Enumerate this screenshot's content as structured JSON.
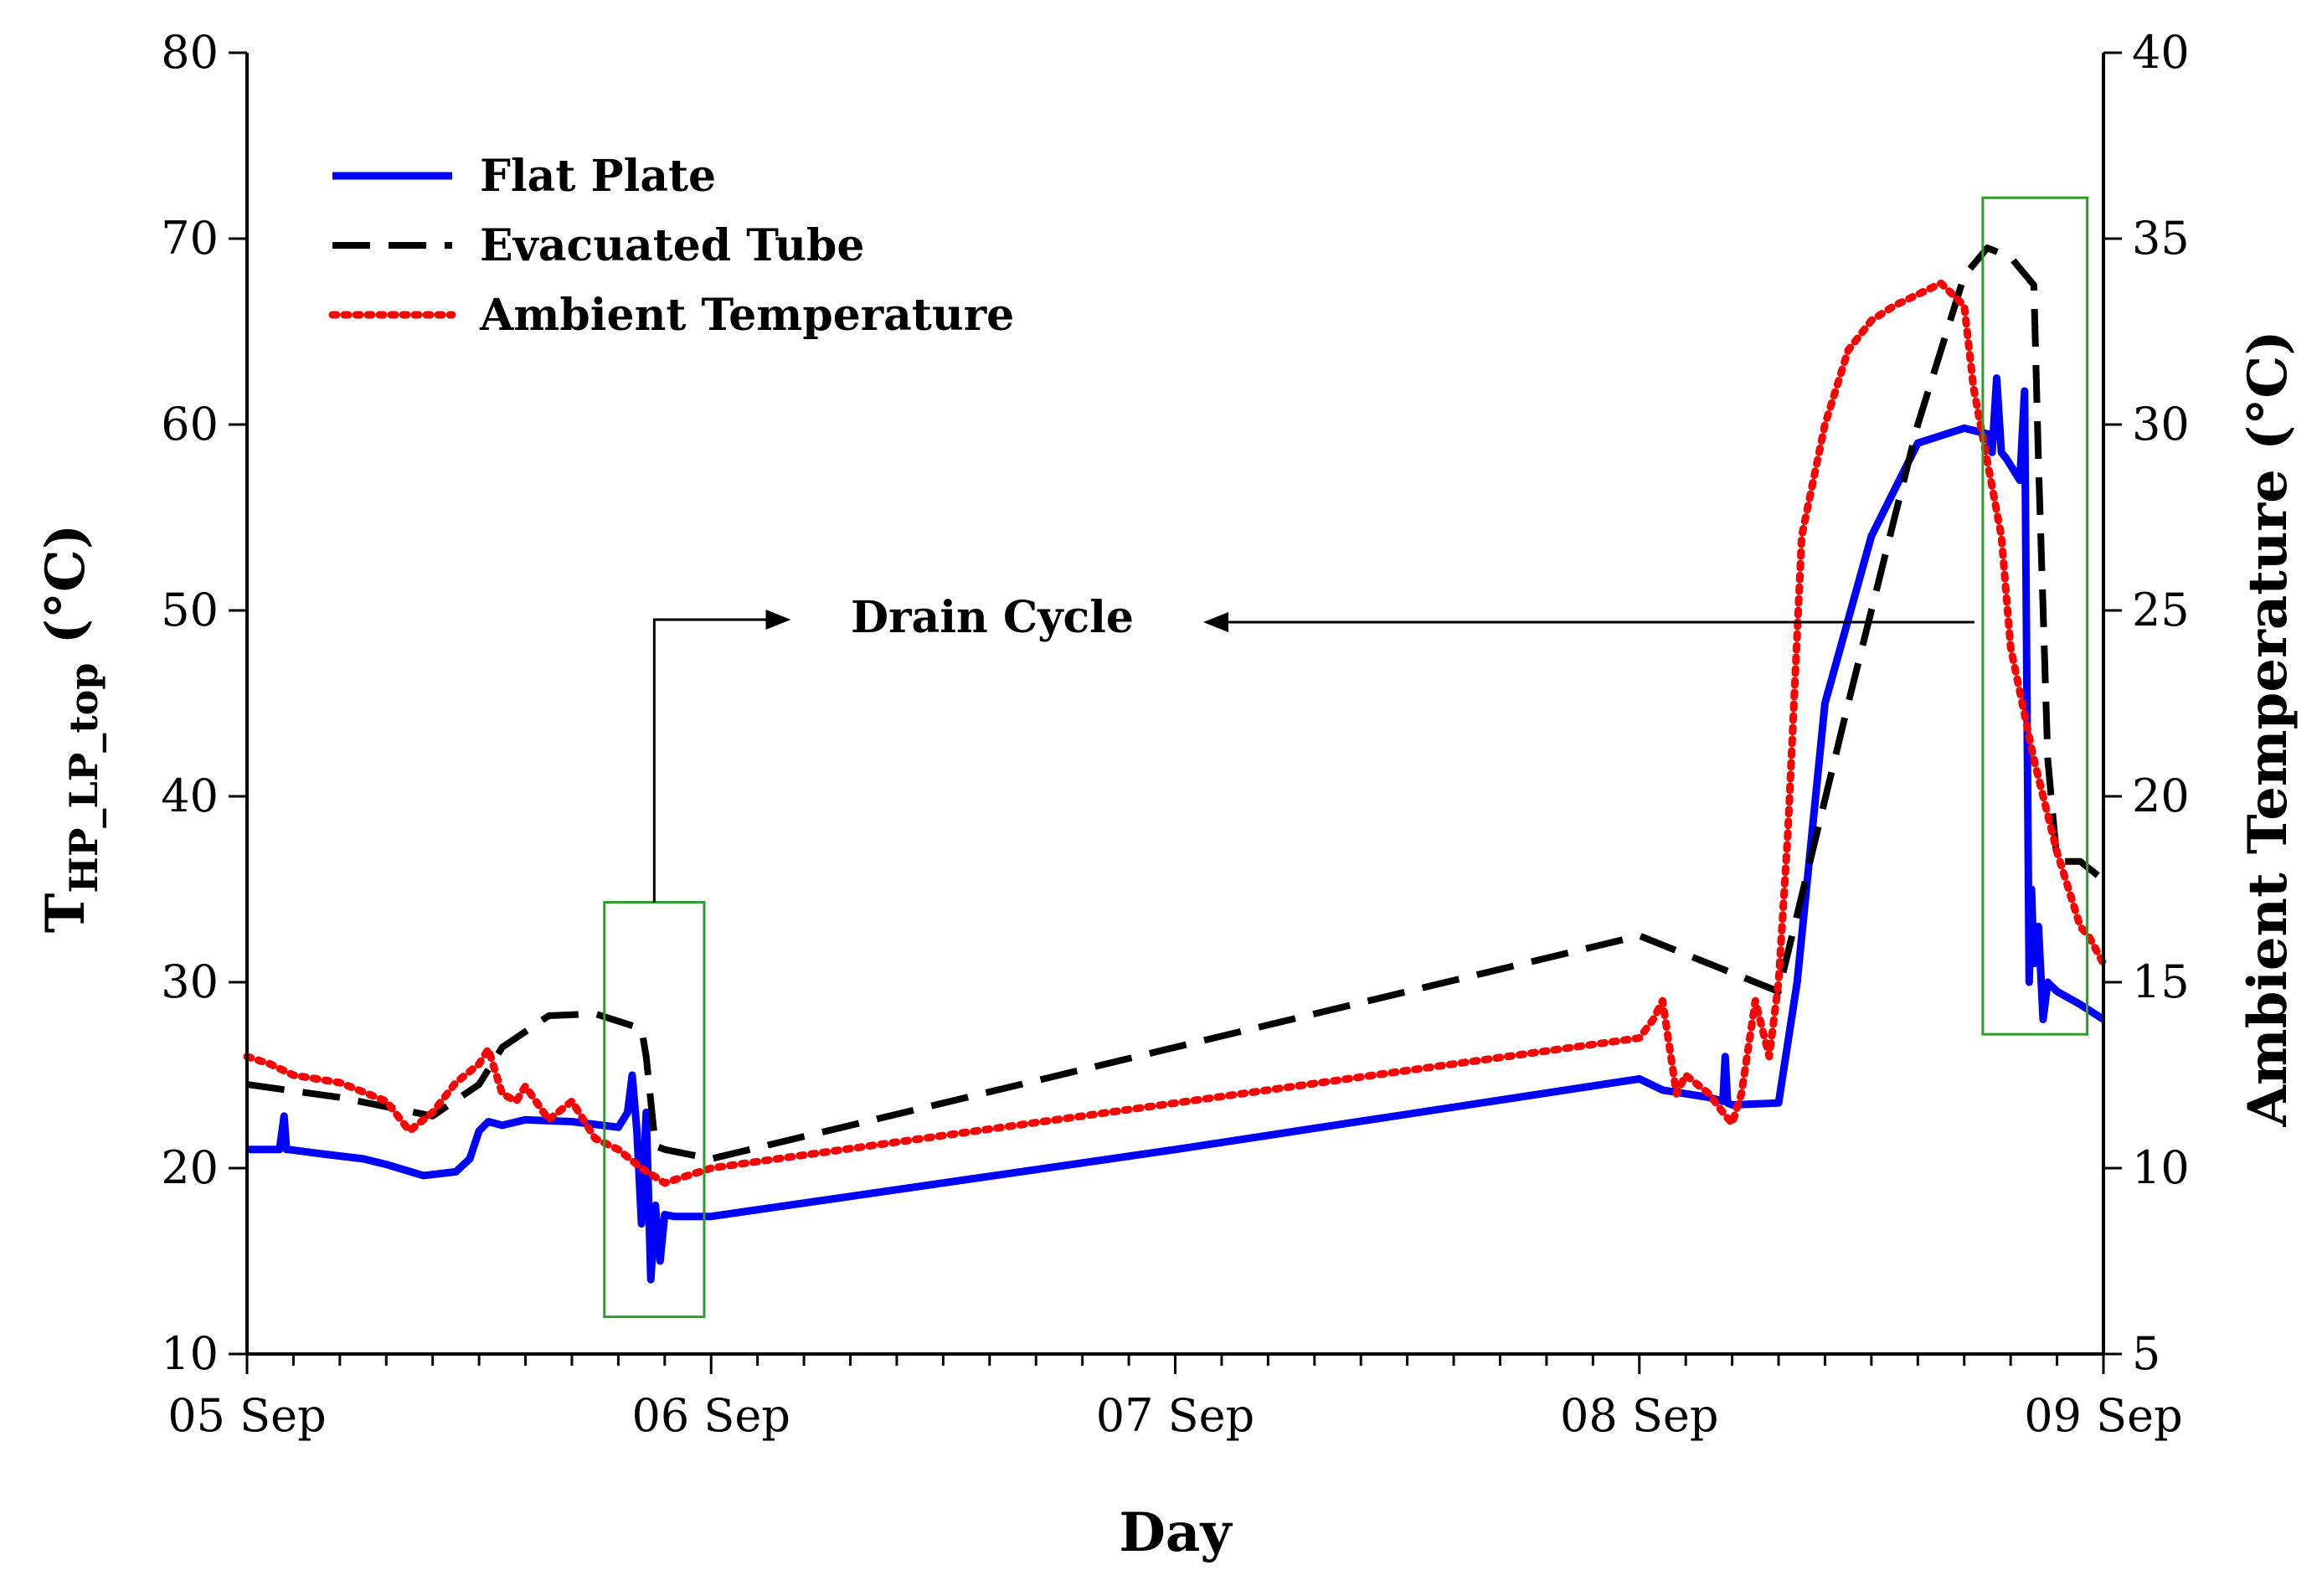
{
  "chart_data": {
    "type": "line",
    "xlabel": "Day",
    "ylabel_main": "T",
    "ylabel_sub": "HP_LP_top",
    "ylabel_unit": " (°C)",
    "y2label": "Ambient Temperature (°C)",
    "xlim": [
      0,
      4
    ],
    "ylim": [
      10,
      80
    ],
    "y2lim": [
      5,
      40
    ],
    "x_ticks": [
      {
        "value": 0,
        "label": "05 Sep"
      },
      {
        "value": 1,
        "label": "06 Sep"
      },
      {
        "value": 2,
        "label": "07 Sep"
      },
      {
        "value": 3,
        "label": "08 Sep"
      },
      {
        "value": 4,
        "label": "09 Sep"
      }
    ],
    "y_ticks": [
      {
        "value": 10,
        "label": "10"
      },
      {
        "value": 20,
        "label": "20"
      },
      {
        "value": 30,
        "label": "30"
      },
      {
        "value": 40,
        "label": "40"
      },
      {
        "value": 50,
        "label": "50"
      },
      {
        "value": 60,
        "label": "60"
      },
      {
        "value": 70,
        "label": "70"
      },
      {
        "value": 80,
        "label": "80"
      }
    ],
    "y2_ticks": [
      {
        "value": 5,
        "label": "5"
      },
      {
        "value": 10,
        "label": "10"
      },
      {
        "value": 15,
        "label": "15"
      },
      {
        "value": 20,
        "label": "20"
      },
      {
        "value": 25,
        "label": "25"
      },
      {
        "value": 30,
        "label": "30"
      },
      {
        "value": 35,
        "label": "35"
      },
      {
        "value": 40,
        "label": "40"
      }
    ],
    "legend_position": "top-left",
    "series": [
      {
        "name": "Flat Plate",
        "axis": "left",
        "color": "#0000ff",
        "style": "solid",
        "x": [
          0,
          0.07,
          0.08,
          0.085,
          0.09,
          0.15,
          0.25,
          0.3,
          0.38,
          0.45,
          0.48,
          0.5,
          0.52,
          0.55,
          0.6,
          0.7,
          0.8,
          0.82,
          0.83,
          0.84,
          0.85,
          0.86,
          0.87,
          0.88,
          0.89,
          0.9,
          0.92,
          1.0,
          2.0,
          3.0,
          3.05,
          3.15,
          3.18,
          3.185,
          3.19,
          3.2,
          3.3,
          3.34,
          3.4,
          3.5,
          3.6,
          3.7,
          3.75,
          3.76,
          3.77,
          3.78,
          3.79,
          3.8,
          3.82,
          3.83,
          3.84,
          3.845,
          3.85,
          3.86,
          3.87,
          3.88,
          3.9,
          3.95,
          4.0
        ],
        "y": [
          21,
          21,
          22.8,
          21,
          21,
          20.8,
          20.5,
          20.2,
          19.6,
          19.8,
          20.5,
          22,
          22.5,
          22.3,
          22.6,
          22.5,
          22.2,
          23,
          25,
          22,
          17,
          23,
          14,
          18,
          15,
          17.5,
          17.4,
          17.4,
          21,
          24.8,
          24.2,
          23.8,
          23.6,
          26,
          23.5,
          23.4,
          23.5,
          30,
          45,
          54,
          59,
          59.8,
          59.5,
          58.5,
          62.5,
          58.5,
          58.2,
          57.8,
          57,
          61.8,
          30,
          35,
          31,
          33,
          28,
          30,
          29.5,
          28.8,
          28
        ]
      },
      {
        "name": "Evacuated Tube",
        "axis": "left",
        "color": "#000000",
        "style": "dashed",
        "x": [
          0,
          0.2,
          0.4,
          0.5,
          0.55,
          0.65,
          0.75,
          0.85,
          0.86,
          0.88,
          0.9,
          1.0,
          3.0,
          3.3,
          3.45,
          3.6,
          3.7,
          3.75,
          3.8,
          3.85,
          3.86,
          3.88,
          3.9,
          3.95,
          4.0
        ],
        "y": [
          24.5,
          23.8,
          22.8,
          24.5,
          26.5,
          28.2,
          28.3,
          27.5,
          26,
          21.2,
          21,
          20.5,
          32.5,
          29.5,
          45,
          60,
          68,
          69.5,
          69,
          67.5,
          58,
          42,
          36.5,
          36.5,
          35.5
        ]
      },
      {
        "name": "Ambient Temperature",
        "axis": "right",
        "color": "#ff0000",
        "style": "dotted",
        "x": [
          0,
          0.05,
          0.1,
          0.2,
          0.3,
          0.35,
          0.4,
          0.45,
          0.5,
          0.52,
          0.55,
          0.58,
          0.6,
          0.65,
          0.7,
          0.75,
          0.8,
          0.85,
          0.9,
          0.95,
          1.0,
          3.0,
          3.03,
          3.05,
          3.08,
          3.1,
          3.15,
          3.18,
          3.2,
          3.22,
          3.25,
          3.28,
          3.3,
          3.32,
          3.35,
          3.4,
          3.45,
          3.5,
          3.55,
          3.6,
          3.65,
          3.7,
          3.72,
          3.75,
          3.78,
          3.8,
          3.85,
          3.9,
          3.95,
          3.97,
          4.0
        ],
        "y": [
          13,
          12.8,
          12.5,
          12.3,
          11.8,
          11,
          11.5,
          12.3,
          12.8,
          13.2,
          12,
          11.8,
          12.2,
          11.3,
          11.8,
          10.8,
          10.5,
          10,
          9.6,
          9.8,
          10,
          13.5,
          14,
          14.5,
          12,
          12.5,
          12,
          11.5,
          11.2,
          12,
          14.5,
          13,
          15,
          19,
          27,
          30,
          32,
          32.8,
          33.2,
          33.5,
          33.8,
          33.2,
          31,
          29,
          27,
          24,
          21,
          18.5,
          16.5,
          16.2,
          15.5
        ]
      }
    ],
    "annotations": {
      "drain_cycle_label": "Drain Cycle",
      "boxes": [
        {
          "x0": 0.77,
          "x1": 0.985,
          "y0": 12,
          "y1": 34.3
        },
        {
          "x0": 3.74,
          "x1": 3.965,
          "y0": 27.2,
          "y1": 72.2
        }
      ]
    }
  }
}
